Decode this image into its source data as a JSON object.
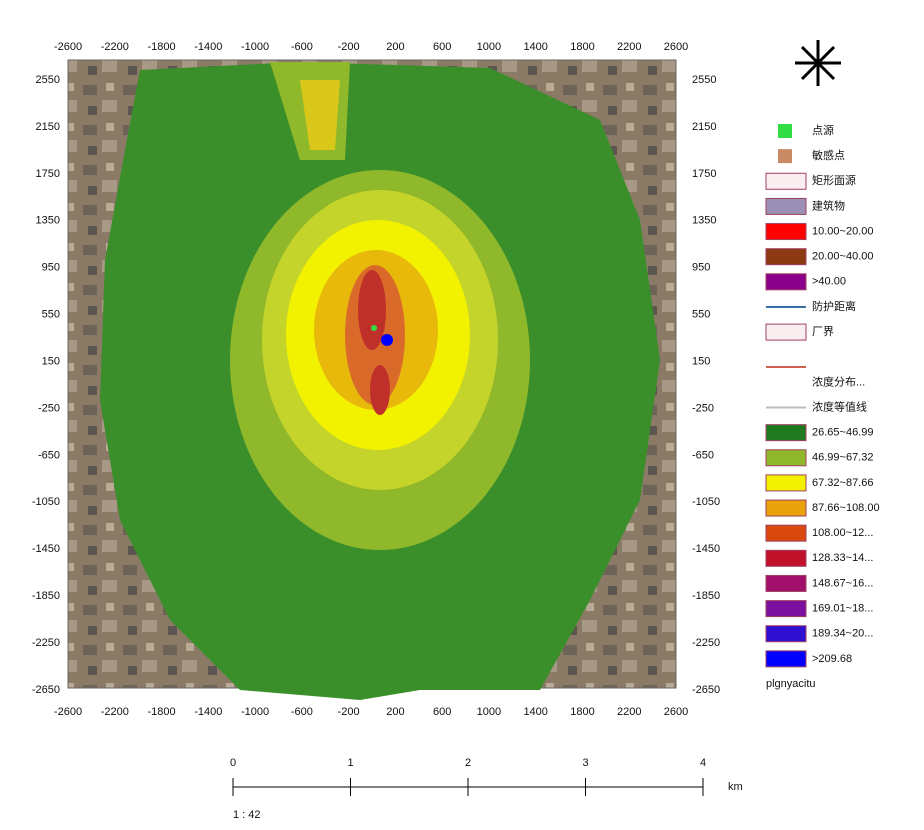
{
  "map": {
    "x_ticks": [
      "-2600",
      "-2200",
      "-1800",
      "-1400",
      "-1000",
      "-600",
      "-200",
      "200",
      "600",
      "1000",
      "1400",
      "1800",
      "2200",
      "2600"
    ],
    "y_ticks": [
      "2550",
      "2150",
      "1750",
      "1350",
      "950",
      "550",
      "150",
      "-250",
      "-650",
      "-1050",
      "-1450",
      "-1850",
      "-2250",
      "-2650"
    ],
    "legend": [
      {
        "label": "点源",
        "color": "#33dd44",
        "kind": "dot"
      },
      {
        "label": "敏感点",
        "color": "#c98a66",
        "kind": "dot"
      },
      {
        "label": "矩形面源",
        "color": "#fbeef0",
        "kind": "box"
      },
      {
        "label": "建筑物",
        "color": "#9a8fb5",
        "kind": "box"
      },
      {
        "label": "10.00~20.00",
        "color": "#ff0000",
        "kind": "box"
      },
      {
        "label": "20.00~40.00",
        "color": "#8b3a12",
        "kind": "box"
      },
      {
        "label": ">40.00",
        "color": "#8b008b",
        "kind": "box"
      },
      {
        "label": "防护距离",
        "color": "#3a6fa8",
        "kind": "line"
      },
      {
        "label": "厂界",
        "color": "#fbeef0",
        "kind": "box"
      },
      {
        "label": "浓度分布...",
        "color": "#ffffff",
        "kind": "none"
      },
      {
        "label": "浓度等值线",
        "color": "#bbbbbb",
        "kind": "line"
      },
      {
        "label": "26.65~46.99",
        "color": "#1f7a1f",
        "kind": "box"
      },
      {
        "label": "46.99~67.32",
        "color": "#8fb82a",
        "kind": "box"
      },
      {
        "label": "67.32~87.66",
        "color": "#f2f200",
        "kind": "box"
      },
      {
        "label": "87.66~108.00",
        "color": "#e8a20a",
        "kind": "box"
      },
      {
        "label": "108.00~12...",
        "color": "#d9480f",
        "kind": "box"
      },
      {
        "label": "128.33~14...",
        "color": "#c0102a",
        "kind": "box"
      },
      {
        "label": "148.67~16...",
        "color": "#a0106a",
        "kind": "box"
      },
      {
        "label": "169.01~18...",
        "color": "#7a10a0",
        "kind": "box"
      },
      {
        "label": "189.34~20...",
        "color": "#3010d0",
        "kind": "box"
      },
      {
        "label": ">209.68",
        "color": "#0000ff",
        "kind": "box"
      },
      {
        "label": "plgnyacitu",
        "color": "#ffffff",
        "kind": "none"
      }
    ],
    "scale": {
      "ticks": [
        "0",
        "1",
        "2",
        "3",
        "4"
      ],
      "unit": "km",
      "ratio": "1 : 42"
    }
  }
}
